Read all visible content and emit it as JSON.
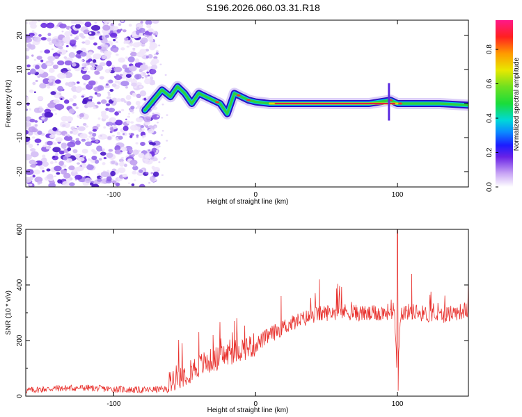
{
  "title": "S196.2026.060.03.31.R18",
  "colors": {
    "snr_line": "#e8322e",
    "axis": "#000000",
    "spec_dark": "#3a14c8",
    "spec_light": "#a886f0",
    "spec_ridge": "#e0203a"
  },
  "chart_data": [
    {
      "type": "heatmap",
      "panel": "top",
      "xlabel": "Height of straight line (km)",
      "ylabel": "Frequency (Hz)",
      "xlim": [
        -162,
        150
      ],
      "ylim": [
        -24.5,
        24.5
      ],
      "xticks": [
        -100,
        0,
        100
      ],
      "xtick_labels": [
        "-100",
        "0",
        "100"
      ],
      "yticks": [
        -20,
        -10,
        0,
        10,
        20
      ],
      "ytick_labels": [
        "-20",
        "-10",
        "0",
        "10",
        "20"
      ],
      "noise_region_x": [
        -162,
        -72
      ],
      "ridge": {
        "description_points_x": [
          -78,
          -72,
          -66,
          -60,
          -55,
          -50,
          -45,
          -40,
          -35,
          -30,
          -25,
          -20,
          -15,
          -10,
          -5,
          0,
          10,
          20,
          40,
          60,
          80,
          95,
          100,
          110,
          130,
          150
        ],
        "description_points_freq": [
          -2,
          1,
          4,
          2,
          5,
          3,
          0,
          3,
          2,
          1,
          0,
          -3,
          3,
          2,
          1,
          0.5,
          0,
          0,
          0,
          0,
          0,
          1,
          0,
          0,
          0,
          -0.5
        ]
      },
      "colorbar": {
        "label": "Normalized spectral amplitude",
        "ticks": [
          0.0,
          0.2,
          0.4,
          0.6,
          0.8
        ],
        "tick_labels": [
          "0.0",
          "0.2",
          "0.4",
          "0.6",
          "0.8"
        ],
        "range": [
          0,
          0.97
        ]
      }
    },
    {
      "type": "line",
      "panel": "bottom",
      "xlabel": "Height of straight line (km)",
      "ylabel": "SNR (10 * v/v)",
      "xlim": [
        -162,
        150
      ],
      "ylim": [
        0,
        600
      ],
      "xticks": [
        -100,
        0,
        100
      ],
      "xtick_labels": [
        "-100",
        "0",
        "100"
      ],
      "yticks": [
        0,
        200,
        400,
        600
      ],
      "ytick_labels": [
        "0",
        "200",
        "400",
        "600"
      ],
      "series": [
        {
          "name": "SNR",
          "x": [
            -162,
            -150,
            -140,
            -120,
            -100,
            -80,
            -70,
            -62,
            -60,
            -55,
            -50,
            -45,
            -40,
            -35,
            -30,
            -25,
            -20,
            -10,
            0,
            10,
            20,
            30,
            40,
            50,
            60,
            70,
            80,
            90,
            98,
            100,
            102,
            110,
            120,
            130,
            140,
            150
          ],
          "y": [
            20,
            25,
            28,
            30,
            25,
            22,
            24,
            25,
            60,
            70,
            80,
            95,
            110,
            120,
            130,
            140,
            150,
            170,
            185,
            220,
            250,
            270,
            290,
            300,
            305,
            300,
            295,
            300,
            310,
            30,
            300,
            305,
            295,
            290,
            300,
            310
          ],
          "spikes": [
            {
              "x": -40,
              "y": 230
            },
            {
              "x": -30,
              "y": 220
            },
            {
              "x": -15,
              "y": 270
            },
            {
              "x": 18,
              "y": 360
            },
            {
              "x": 45,
              "y": 420
            },
            {
              "x": 100,
              "y": 610
            },
            {
              "x": 100.5,
              "y": 20
            },
            {
              "x": 110,
              "y": 440
            },
            {
              "x": 150,
              "y": 410
            }
          ]
        }
      ]
    }
  ]
}
